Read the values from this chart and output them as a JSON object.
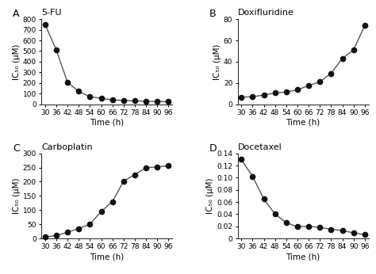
{
  "time": [
    30,
    36,
    42,
    48,
    54,
    60,
    66,
    72,
    78,
    84,
    90,
    96
  ],
  "A_title": "5-FU",
  "A_label": "A",
  "A_values": [
    750,
    510,
    205,
    120,
    70,
    55,
    40,
    35,
    30,
    28,
    25,
    23
  ],
  "A_ylim": [
    0,
    800
  ],
  "A_yticks": [
    0,
    100,
    200,
    300,
    400,
    500,
    600,
    700,
    800
  ],
  "B_title": "Doxifluridine",
  "B_label": "B",
  "B_values": [
    6.5,
    7.0,
    8.5,
    10.5,
    11.5,
    13.5,
    17.5,
    21.0,
    29.0,
    43.0,
    51.0,
    74.0
  ],
  "B_ylim": [
    0,
    80
  ],
  "B_yticks": [
    0,
    20,
    40,
    60,
    80
  ],
  "C_title": "Carboplatin",
  "C_label": "C",
  "C_values": [
    5,
    10,
    22,
    35,
    50,
    95,
    130,
    202,
    225,
    250,
    252,
    257
  ],
  "C_ylim": [
    0,
    300
  ],
  "C_yticks": [
    0,
    50,
    100,
    150,
    200,
    250,
    300
  ],
  "D_title": "Docetaxel",
  "D_label": "D",
  "D_values": [
    0.13,
    0.102,
    0.065,
    0.04,
    0.026,
    0.019,
    0.02,
    0.018,
    0.015,
    0.013,
    0.009,
    0.006
  ],
  "D_ylim": [
    0,
    0.14
  ],
  "D_yticks": [
    0,
    0.02,
    0.04,
    0.06,
    0.08,
    0.1,
    0.12,
    0.14
  ],
  "xlabel": "Time (h)",
  "ylabel": "IC₅₀ (μM)",
  "xticks": [
    30,
    36,
    42,
    48,
    54,
    60,
    66,
    72,
    78,
    84,
    90,
    96
  ],
  "line_color": "#555555",
  "marker_color": "#111111",
  "bg_color": "#ffffff",
  "marker_size": 4.5,
  "line_width": 1.0,
  "label_fontsize": 7.5,
  "tick_fontsize": 6.5,
  "title_fontsize": 8,
  "panel_label_fontsize": 9
}
